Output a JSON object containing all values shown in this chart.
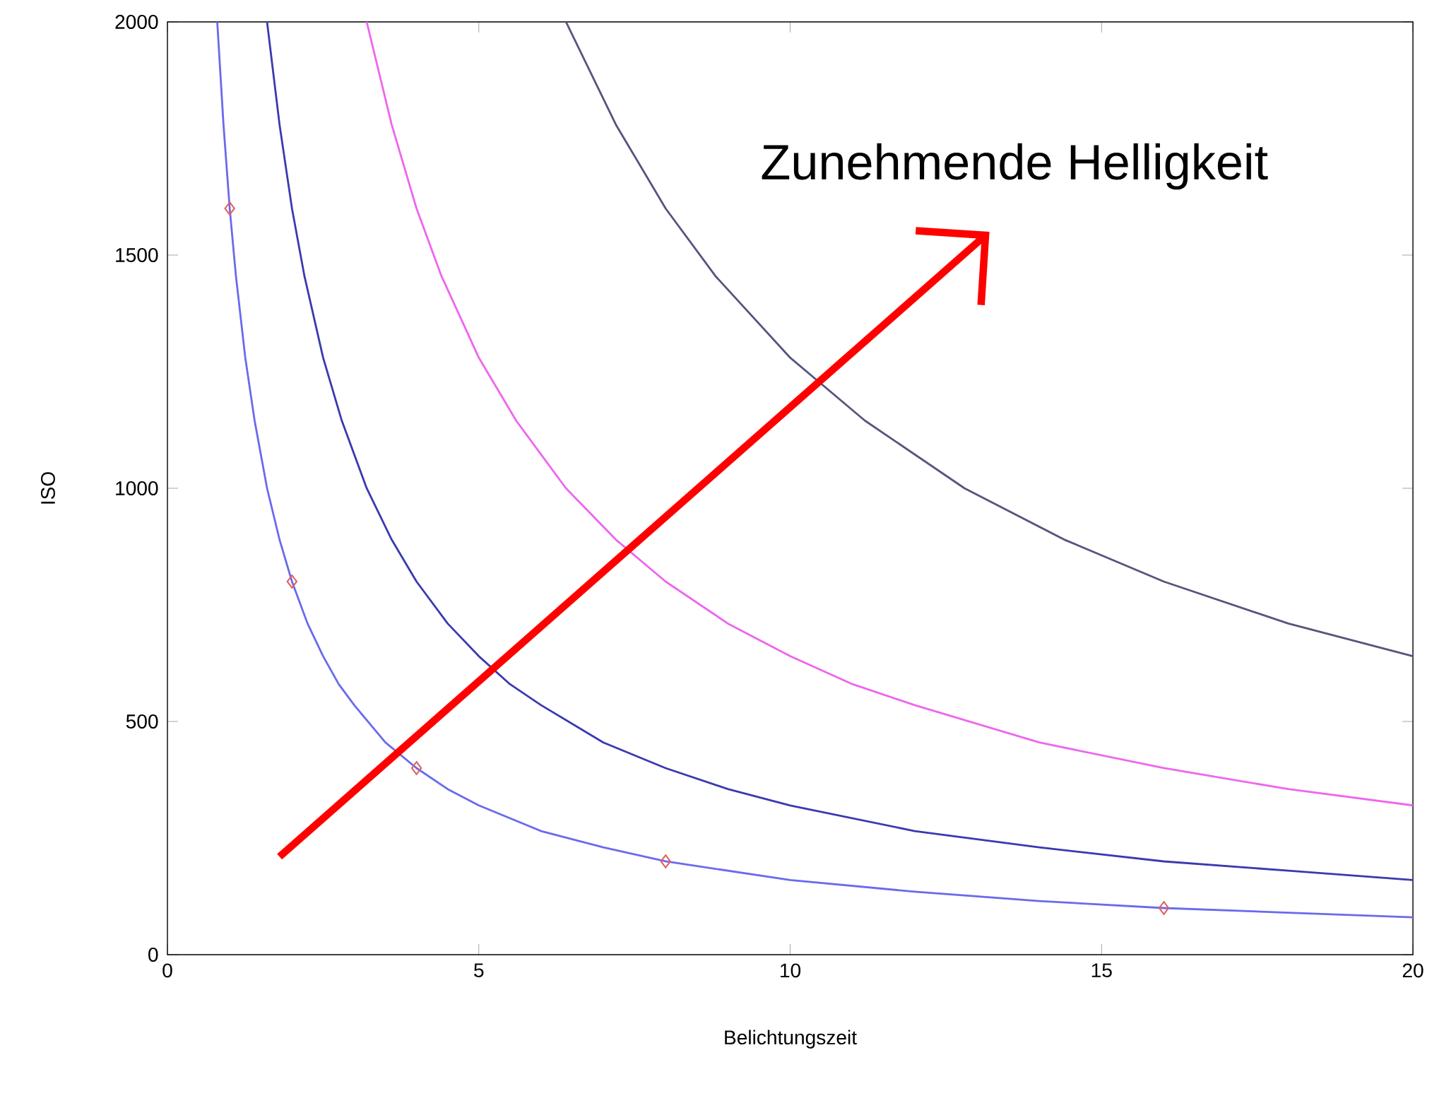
{
  "chart_data": {
    "type": "line",
    "xlabel": "Belichtungszeit",
    "ylabel": "ISO",
    "annotations": [
      "Zunehmende Helligkeit"
    ],
    "xlim": [
      0,
      20
    ],
    "ylim": [
      0,
      2000
    ],
    "xticks": [
      0,
      5,
      10,
      15,
      20
    ],
    "yticks": [
      0,
      500,
      1000,
      1500,
      2000
    ],
    "marker": "none",
    "line_style": "solid",
    "series": [
      {
        "color": "#6a6aee",
        "x": [
          0.8,
          0.9,
          1,
          1.1,
          1.25,
          1.4,
          1.6,
          1.8,
          2,
          2.25,
          2.5,
          2.75,
          3,
          3.5,
          4,
          4.5,
          5,
          6,
          7,
          8,
          9,
          10,
          12,
          14,
          16,
          18,
          20
        ],
        "values": [
          2000,
          1780,
          1600,
          1455,
          1280,
          1145,
          1000,
          890,
          800,
          710,
          640,
          580,
          535,
          455,
          400,
          355,
          320,
          265,
          230,
          200,
          180,
          160,
          135,
          115,
          100,
          90,
          80
        ]
      },
      {
        "color": "#3a3ab0",
        "x": [
          1.6,
          1.8,
          2,
          2.2,
          2.5,
          2.8,
          3.2,
          3.6,
          4,
          4.5,
          5,
          5.5,
          6,
          7,
          8,
          9,
          10,
          12,
          14,
          16,
          18,
          20
        ],
        "values": [
          2000,
          1780,
          1600,
          1455,
          1280,
          1145,
          1000,
          890,
          800,
          710,
          640,
          580,
          535,
          455,
          400,
          355,
          320,
          265,
          230,
          200,
          180,
          160
        ]
      },
      {
        "color": "#ee66ee",
        "x": [
          3.2,
          3.6,
          4,
          4.4,
          5,
          5.6,
          6.4,
          7.2,
          8,
          9,
          10,
          11,
          12,
          14,
          16,
          18,
          20
        ],
        "values": [
          2000,
          1780,
          1600,
          1455,
          1280,
          1145,
          1000,
          890,
          800,
          710,
          640,
          580,
          535,
          455,
          400,
          355,
          320
        ]
      },
      {
        "color": "#55557f",
        "x": [
          6.4,
          7.2,
          8,
          8.8,
          10,
          11.2,
          12.8,
          14.4,
          16,
          18,
          20
        ],
        "values": [
          2000,
          1780,
          1600,
          1455,
          1280,
          1145,
          1000,
          890,
          800,
          710,
          640
        ]
      },
      {
        "type": "scatter",
        "marker": "diamond",
        "color": "#e06060",
        "x": [
          1,
          2,
          4,
          8,
          16
        ],
        "values": [
          1600,
          800,
          400,
          200,
          100
        ]
      }
    ]
  }
}
